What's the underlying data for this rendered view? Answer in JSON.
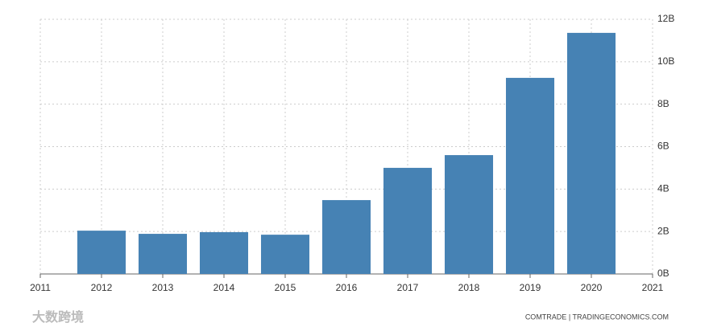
{
  "chart_data": {
    "type": "bar",
    "x": [
      2012,
      2013,
      2014,
      2015,
      2016,
      2017,
      2018,
      2019,
      2020
    ],
    "values": [
      2.04,
      1.89,
      1.97,
      1.85,
      3.48,
      5.0,
      5.6,
      9.24,
      11.36
    ],
    "color": "#4682b4",
    "xlim": [
      2011,
      2021
    ],
    "xticks": [
      2011,
      2012,
      2013,
      2014,
      2015,
      2016,
      2017,
      2018,
      2019,
      2020,
      2021
    ],
    "ylim": [
      0,
      12
    ],
    "yticks": [
      {
        "value": 0,
        "label": "0B"
      },
      {
        "value": 2,
        "label": "2B"
      },
      {
        "value": 4,
        "label": "4B"
      },
      {
        "value": 6,
        "label": "6B"
      },
      {
        "value": 8,
        "label": "8B"
      },
      {
        "value": 10,
        "label": "10B"
      },
      {
        "value": 12,
        "label": "12B"
      }
    ],
    "grid": true,
    "source": "COMTRADE | TRADINGECONOMICS.COM",
    "watermark": "大数跨境"
  }
}
